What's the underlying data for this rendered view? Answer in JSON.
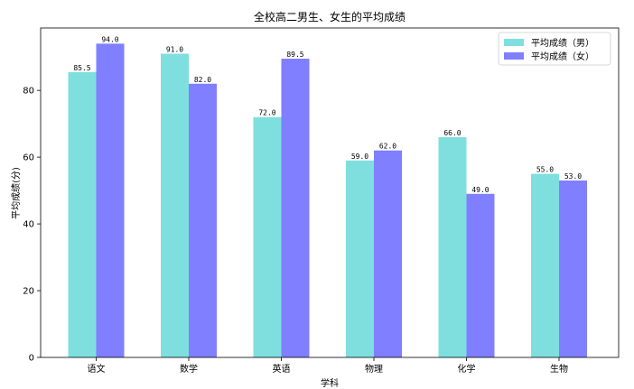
{
  "chart_data": {
    "type": "bar",
    "title": "全校高二男生、女生的平均成绩",
    "xlabel": "学科",
    "ylabel": "平均成绩(分)",
    "categories": [
      "语文",
      "数学",
      "英语",
      "物理",
      "化学",
      "生物"
    ],
    "series": [
      {
        "name": "平均成绩（男）",
        "values": [
          85.5,
          91.0,
          72.0,
          59.0,
          66.0,
          55.0
        ],
        "color": "#7fdfdf"
      },
      {
        "name": "平均成绩（女）",
        "values": [
          94.0,
          82.0,
          89.5,
          62.0,
          49.0,
          53.0
        ],
        "color": "#7f7fff"
      }
    ],
    "data_labels": [
      [
        "85.5",
        "91.0",
        "72.0",
        "59.0",
        "66.0",
        "55.0"
      ],
      [
        "94.0",
        "82.0",
        "89.5",
        "62.0",
        "49.0",
        "53.0"
      ]
    ],
    "ylim": [
      0,
      98.7
    ],
    "yticks": [
      0,
      20,
      40,
      60,
      80
    ],
    "grid": false,
    "legend_position": "top-right"
  }
}
